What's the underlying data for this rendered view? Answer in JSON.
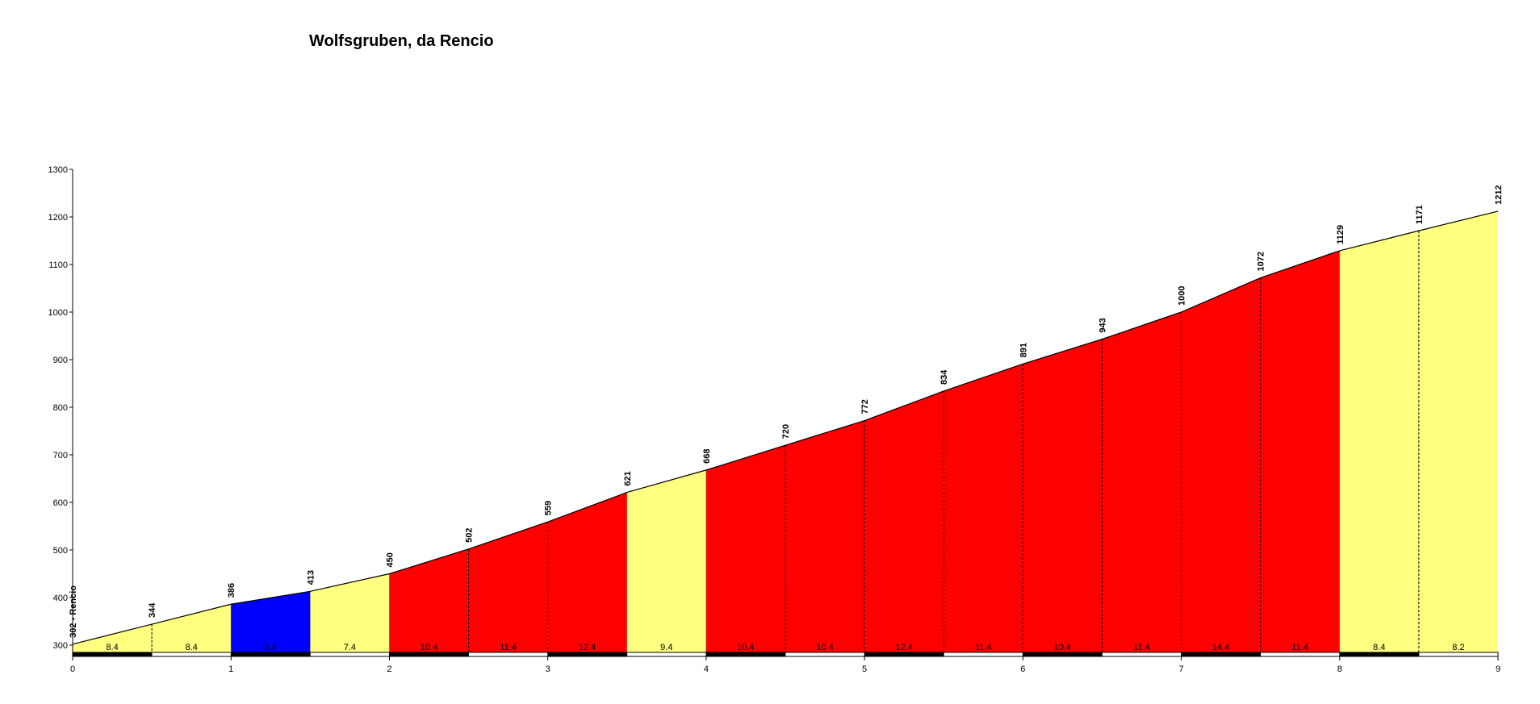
{
  "chart_data": {
    "type": "area",
    "title": "Wolfsgruben, da Rencio",
    "xlabel": "",
    "ylabel": "",
    "xlim": [
      0,
      9
    ],
    "ylim": [
      285,
      1300
    ],
    "x_ticks": [
      "0",
      "1",
      "2",
      "3",
      "4",
      "5",
      "6",
      "7",
      "8",
      "9"
    ],
    "y_ticks": [
      "300",
      "400",
      "500",
      "600",
      "700",
      "800",
      "900",
      "1000",
      "1100",
      "1200",
      "1300"
    ],
    "points": [
      {
        "x": 0,
        "y": 302,
        "label": "302 - Rencio"
      },
      {
        "x": 0.5,
        "y": 344,
        "label": "344"
      },
      {
        "x": 1,
        "y": 386,
        "label": "386"
      },
      {
        "x": 1.5,
        "y": 413,
        "label": "413"
      },
      {
        "x": 2,
        "y": 450,
        "label": "450"
      },
      {
        "x": 2.5,
        "y": 502,
        "label": "502"
      },
      {
        "x": 3,
        "y": 559,
        "label": "559"
      },
      {
        "x": 3.5,
        "y": 621,
        "label": "621"
      },
      {
        "x": 4,
        "y": 668,
        "label": "668"
      },
      {
        "x": 4.5,
        "y": 720,
        "label": "720"
      },
      {
        "x": 5,
        "y": 772,
        "label": "772"
      },
      {
        "x": 5.5,
        "y": 834,
        "label": "834"
      },
      {
        "x": 6,
        "y": 891,
        "label": "891"
      },
      {
        "x": 6.5,
        "y": 943,
        "label": "943"
      },
      {
        "x": 7,
        "y": 1000,
        "label": "1000"
      },
      {
        "x": 7.5,
        "y": 1072,
        "label": "1072"
      },
      {
        "x": 8,
        "y": 1129,
        "label": "1129"
      },
      {
        "x": 8.5,
        "y": 1171,
        "label": "1171"
      },
      {
        "x": 9,
        "y": 1212,
        "label": "1212"
      }
    ],
    "segments": [
      {
        "from": 0,
        "to": 0.5,
        "gradient": "8.4",
        "color": "#FFFF80"
      },
      {
        "from": 0.5,
        "to": 1,
        "gradient": "8.4",
        "color": "#FFFF80"
      },
      {
        "from": 1,
        "to": 1.5,
        "gradient": "5.4",
        "color": "#0000FF"
      },
      {
        "from": 1.5,
        "to": 2,
        "gradient": "7.4",
        "color": "#FFFF80"
      },
      {
        "from": 2,
        "to": 2.5,
        "gradient": "10.4",
        "color": "#FF0000"
      },
      {
        "from": 2.5,
        "to": 3,
        "gradient": "11.4",
        "color": "#FF0000"
      },
      {
        "from": 3,
        "to": 3.5,
        "gradient": "12.4",
        "color": "#FF0000"
      },
      {
        "from": 3.5,
        "to": 4,
        "gradient": "9.4",
        "color": "#FFFF80"
      },
      {
        "from": 4,
        "to": 4.5,
        "gradient": "10.4",
        "color": "#FF0000"
      },
      {
        "from": 4.5,
        "to": 5,
        "gradient": "10.4",
        "color": "#FF0000"
      },
      {
        "from": 5,
        "to": 5.5,
        "gradient": "12.4",
        "color": "#FF0000"
      },
      {
        "from": 5.5,
        "to": 6,
        "gradient": "11.4",
        "color": "#FF0000"
      },
      {
        "from": 6,
        "to": 6.5,
        "gradient": "10.4",
        "color": "#FF0000"
      },
      {
        "from": 6.5,
        "to": 7,
        "gradient": "11.4",
        "color": "#FF0000"
      },
      {
        "from": 7,
        "to": 7.5,
        "gradient": "14.4",
        "color": "#FF0000"
      },
      {
        "from": 7.5,
        "to": 8,
        "gradient": "11.4",
        "color": "#FF0000"
      },
      {
        "from": 8,
        "to": 8.5,
        "gradient": "8.4",
        "color": "#FFFF80"
      },
      {
        "from": 8.5,
        "to": 9,
        "gradient": "8.2",
        "color": "#FFFF80"
      }
    ],
    "colors": {
      "mid_gradient": "#FFFF80",
      "steep_gradient": "#FF0000",
      "easy_gradient": "#0000FF",
      "axis": "#000000",
      "km_band_dark": "#000000",
      "km_band_light": "#FFFFFF"
    },
    "grid": false,
    "legend": "none"
  }
}
